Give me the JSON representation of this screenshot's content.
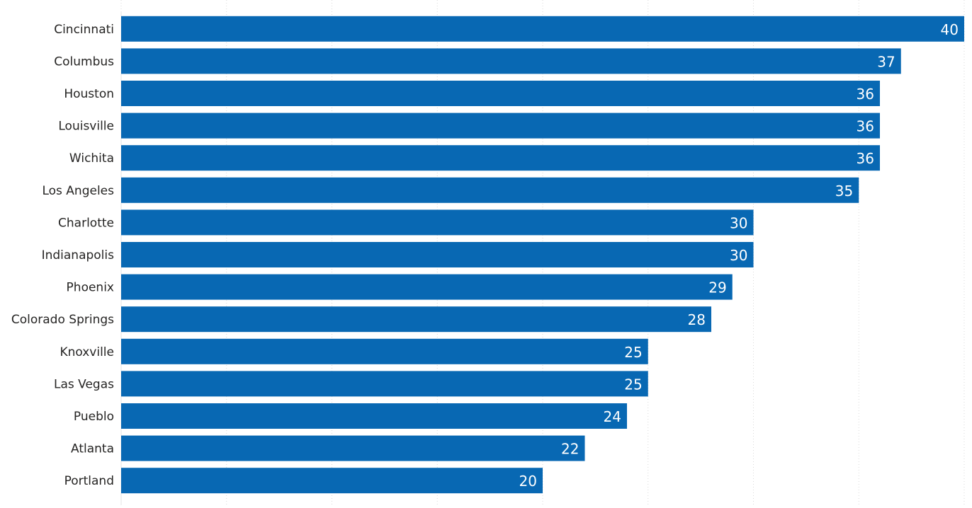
{
  "chart_data": {
    "type": "bar",
    "orientation": "horizontal",
    "categories": [
      "Cincinnati",
      "Columbus",
      "Houston",
      "Louisville",
      "Wichita",
      "Los Angeles",
      "Charlotte",
      "Indianapolis",
      "Phoenix",
      "Colorado Springs",
      "Knoxville",
      "Las Vegas",
      "Pueblo",
      "Atlanta",
      "Portland"
    ],
    "values": [
      40,
      37,
      36,
      36,
      36,
      35,
      30,
      30,
      29,
      28,
      25,
      25,
      24,
      22,
      20
    ],
    "title": "",
    "xlabel": "",
    "ylabel": "",
    "xlim": [
      0,
      40
    ],
    "data_labels": true,
    "grid": "vertical dotted",
    "legend": "none",
    "colors": {
      "bar": "#0868b3",
      "label": "#252423",
      "value_label": "#ffffff",
      "grid": "#d9d9d9"
    }
  }
}
